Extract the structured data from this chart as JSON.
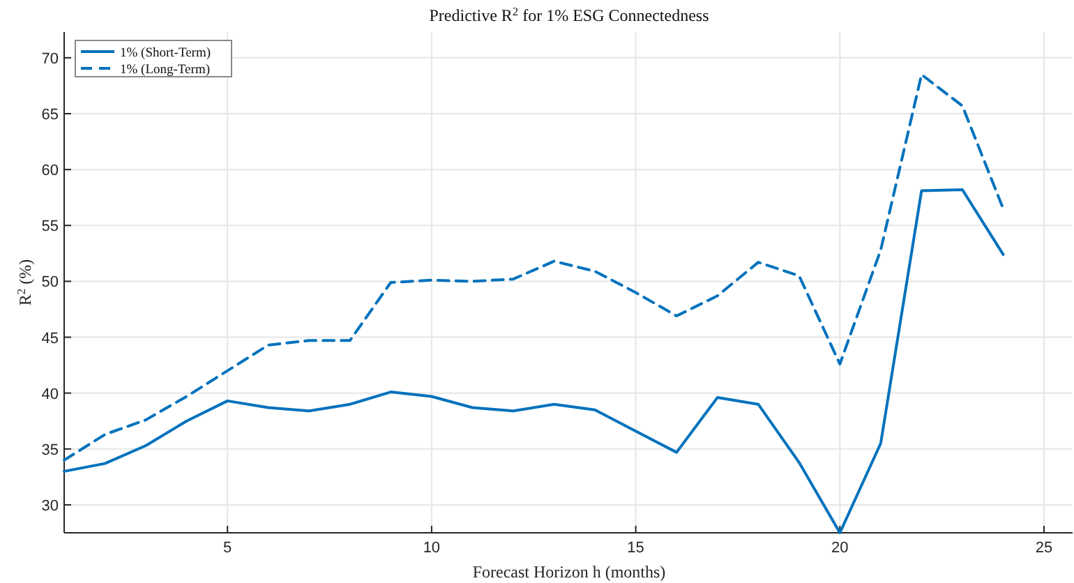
{
  "chart_data": {
    "type": "line",
    "title": "Predictive R$^{2}$ for 1% ESG Connectedness",
    "xlabel": "Forecast Horizon h (months)",
    "ylabel": "R$^{2}$ (%)",
    "x": [
      1,
      2,
      3,
      4,
      5,
      6,
      7,
      8,
      9,
      10,
      11,
      12,
      13,
      14,
      15,
      16,
      17,
      18,
      19,
      20,
      21,
      22,
      23,
      24
    ],
    "series": [
      {
        "name": "1% (Short-Term)",
        "color": "#0072bd",
        "line_style": "solid",
        "values": [
          33.0,
          33.7,
          35.3,
          37.5,
          39.3,
          38.7,
          38.4,
          39.0,
          40.1,
          39.7,
          38.7,
          38.4,
          39.0,
          38.5,
          36.6,
          34.7,
          39.6,
          39.0,
          33.8,
          27.5,
          35.5,
          58.1,
          58.2,
          52.4
        ]
      },
      {
        "name": "1% (Long-Term)",
        "color": "#0072bd",
        "line_style": "dashed",
        "values": [
          34.0,
          36.3,
          37.6,
          39.7,
          42.0,
          44.3,
          44.7,
          44.7,
          49.9,
          50.1,
          50.0,
          50.2,
          51.8,
          50.9,
          49.0,
          46.9,
          48.7,
          51.7,
          50.5,
          42.6,
          52.8,
          68.5,
          65.7,
          56.5
        ]
      }
    ],
    "xlim": [
      1,
      25.7
    ],
    "xticks": [
      5,
      10,
      15,
      20,
      25
    ],
    "ylim": [
      27.5,
      72.3
    ],
    "yticks": [
      30,
      35,
      40,
      45,
      50,
      55,
      60,
      65,
      70
    ],
    "grid": true,
    "legend": "top left",
    "marker": "none"
  }
}
